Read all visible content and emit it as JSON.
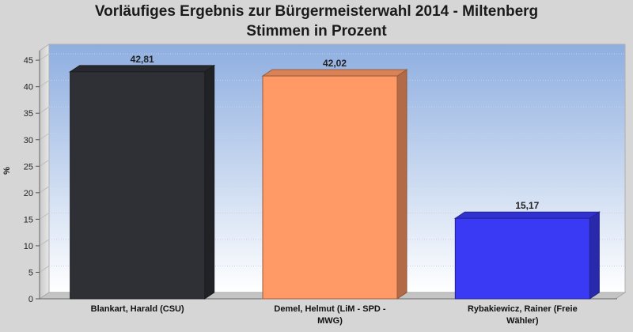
{
  "title_line1": "Vorläufiges Ergebnis zur Bürgermeisterwahl 2014 - Miltenberg",
  "title_line2": "Stimmen in Prozent",
  "chart_data": {
    "type": "bar",
    "title": "Vorläufiges Ergebnis zur Bürgermeisterwahl 2014 - Miltenberg",
    "subtitle": "Stimmen in Prozent",
    "xlabel": "",
    "ylabel": "%",
    "ylim": [
      0,
      48
    ],
    "yticks": [
      0,
      5,
      10,
      15,
      20,
      25,
      30,
      35,
      40,
      45
    ],
    "grid": true,
    "categories": [
      [
        "Blankart, Harald (CSU)"
      ],
      [
        "Demel, Helmut (LiM - SPD -",
        "MWG)"
      ],
      [
        "Rybakiewicz, Rainer (Freie",
        "Wähler)"
      ]
    ],
    "values": [
      42.81,
      42.02,
      15.17
    ],
    "value_labels": [
      "42,81",
      "42,02",
      "15,17"
    ],
    "colors": [
      "#2e3036",
      "#ff9966",
      "#3a3af5"
    ]
  }
}
